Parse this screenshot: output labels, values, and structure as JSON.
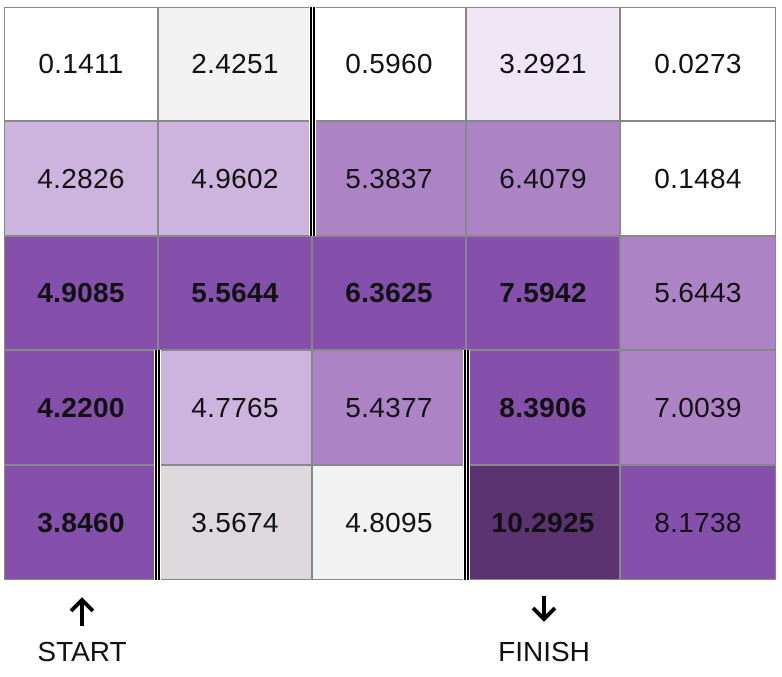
{
  "grid": {
    "rows": [
      [
        {
          "value": "0.1411",
          "bg": "#ffffff",
          "bold": false
        },
        {
          "value": "2.4251",
          "bg": "#f2f2f2",
          "bold": false
        },
        {
          "value": "0.5960",
          "bg": "#ffffff",
          "bold": false
        },
        {
          "value": "3.2921",
          "bg": "#efe6f5",
          "bold": false
        },
        {
          "value": "0.0273",
          "bg": "#ffffff",
          "bold": false
        }
      ],
      [
        {
          "value": "4.2826",
          "bg": "#cdb4de",
          "bold": false
        },
        {
          "value": "4.9602",
          "bg": "#cdb4de",
          "bold": false
        },
        {
          "value": "5.3837",
          "bg": "#ac84c6",
          "bold": false
        },
        {
          "value": "6.4079",
          "bg": "#ac84c6",
          "bold": false
        },
        {
          "value": "0.1484",
          "bg": "#ffffff",
          "bold": false
        }
      ],
      [
        {
          "value": "4.9085",
          "bg": "#8450ac",
          "bold": true
        },
        {
          "value": "5.5644",
          "bg": "#8450ac",
          "bold": true
        },
        {
          "value": "6.3625",
          "bg": "#8450ac",
          "bold": true
        },
        {
          "value": "7.5942",
          "bg": "#8450ac",
          "bold": true
        },
        {
          "value": "5.6443",
          "bg": "#ac84c6",
          "bold": false
        }
      ],
      [
        {
          "value": "4.2200",
          "bg": "#8450ac",
          "bold": true
        },
        {
          "value": "4.7765",
          "bg": "#cdb4de",
          "bold": false
        },
        {
          "value": "5.4377",
          "bg": "#ac84c6",
          "bold": false
        },
        {
          "value": "8.3906",
          "bg": "#8450ac",
          "bold": true
        },
        {
          "value": "7.0039",
          "bg": "#ac84c6",
          "bold": false
        }
      ],
      [
        {
          "value": "3.8460",
          "bg": "#8450ac",
          "bold": true
        },
        {
          "value": "3.5674",
          "bg": "#dcd8dc",
          "bold": false
        },
        {
          "value": "4.8095",
          "bg": "#f2f2f2",
          "bold": false
        },
        {
          "value": "10.2925",
          "bg": "#5a3370",
          "bold": true
        },
        {
          "value": "8.1738",
          "bg": "#8450ac",
          "bold": false
        }
      ]
    ]
  },
  "markers": {
    "start_label": "START",
    "finish_label": "FINISH"
  }
}
